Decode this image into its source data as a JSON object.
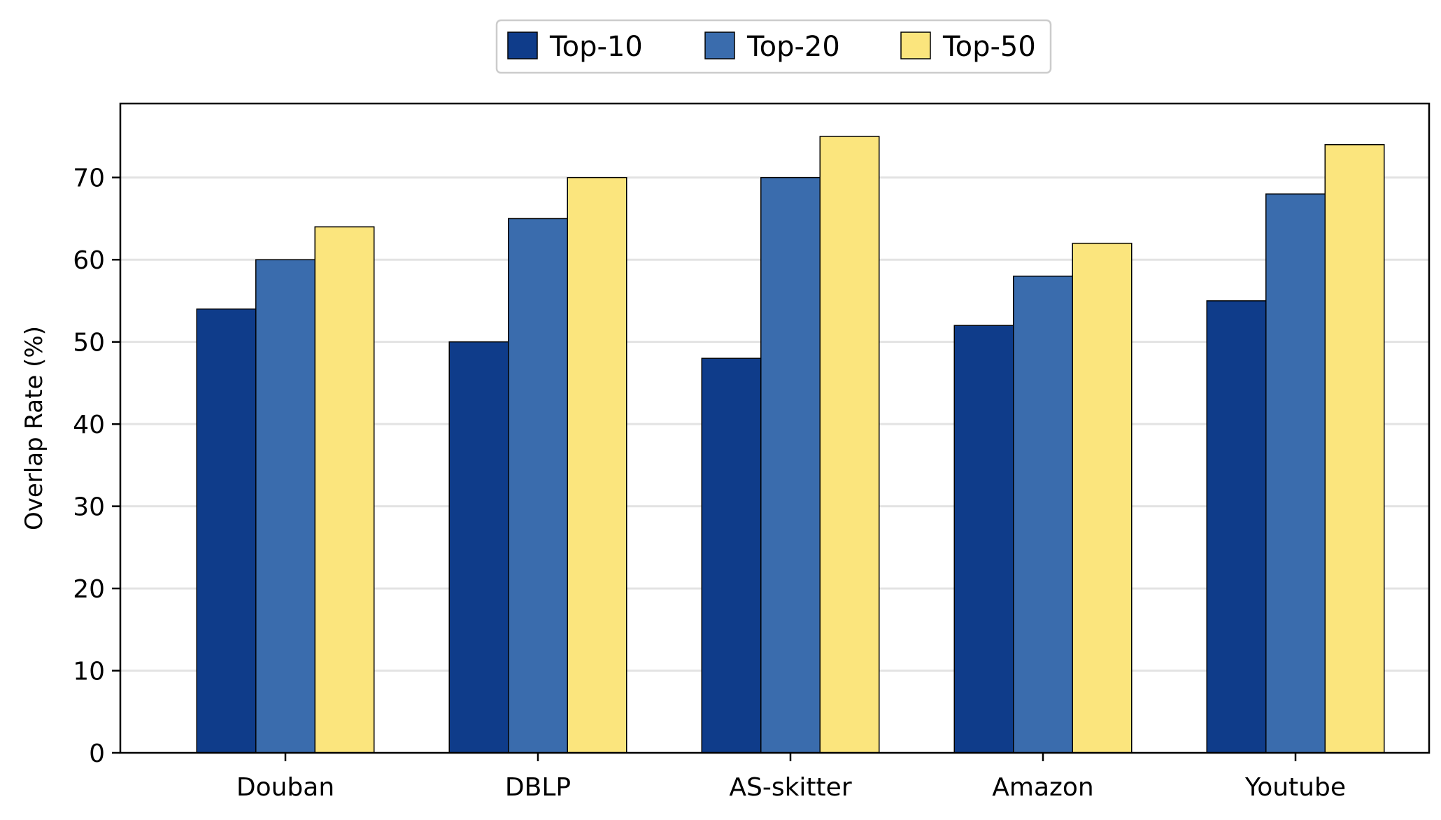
{
  "chart_data": {
    "type": "bar",
    "title": "",
    "xlabel": "",
    "ylabel": "Overlap Rate (%)",
    "categories": [
      "Douban",
      "DBLP",
      "AS-skitter",
      "Amazon",
      "Youtube"
    ],
    "series": [
      {
        "name": "Top-10",
        "color": "#0f3c8a",
        "values": [
          54,
          50,
          48,
          52,
          55
        ]
      },
      {
        "name": "Top-20",
        "color": "#3a6cad",
        "values": [
          60,
          65,
          70,
          58,
          68
        ]
      },
      {
        "name": "Top-50",
        "color": "#fbe57d",
        "values": [
          64,
          70,
          75,
          62,
          74
        ]
      }
    ],
    "ylim": [
      0,
      79
    ],
    "yticks": [
      0,
      10,
      20,
      30,
      40,
      50,
      60,
      70
    ],
    "grid": "horizontal",
    "legend_position": "top-center"
  }
}
